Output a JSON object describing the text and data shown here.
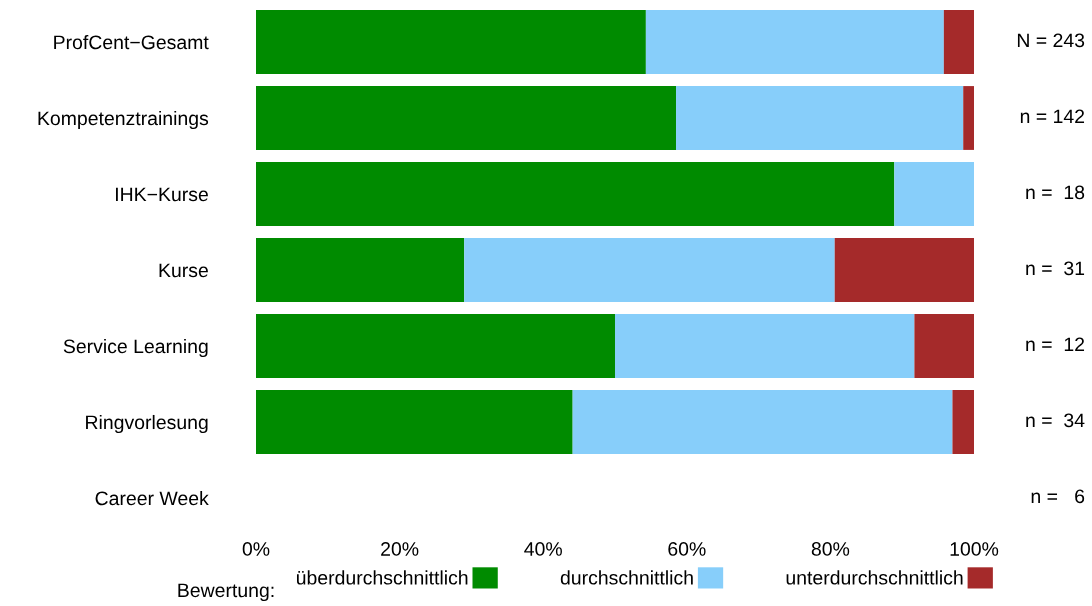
{
  "chart_data": {
    "type": "bar",
    "orientation": "horizontal",
    "stacked": true,
    "categories": [
      "ProfCent−Gesamt",
      "Kompetenztrainings",
      "IHK−Kurse",
      "Kurse",
      "Service Learning",
      "Ringvorlesung",
      "Career Week"
    ],
    "series": [
      {
        "name": "überdurchschnittlich",
        "color": "#008b00",
        "values": [
          54.3,
          58.5,
          88.9,
          29.0,
          50.0,
          44.1,
          null
        ]
      },
      {
        "name": "durchschnittlich",
        "color": "#87cefa",
        "values": [
          41.5,
          40.0,
          11.1,
          51.6,
          41.7,
          52.9,
          null
        ]
      },
      {
        "name": "unterdurchschnittlich",
        "color": "#a52a2a",
        "values": [
          4.2,
          1.5,
          0,
          19.4,
          8.3,
          3.0,
          null
        ]
      }
    ],
    "xlim": [
      0,
      100
    ],
    "xticks": [
      {
        "value": 0,
        "label": "0%"
      },
      {
        "value": 20,
        "label": "20%"
      },
      {
        "value": 40,
        "label": "40%"
      },
      {
        "value": 60,
        "label": "60%"
      },
      {
        "value": 80,
        "label": "80%"
      },
      {
        "value": 100,
        "label": "100%"
      }
    ],
    "legend": "bottom",
    "legend_title": "Bewertung:",
    "grid": false,
    "annotations": [
      "N = 243",
      "n = 142",
      "n =  18",
      "n =  31",
      "n =  12",
      "n =  34",
      "n =   6"
    ]
  }
}
